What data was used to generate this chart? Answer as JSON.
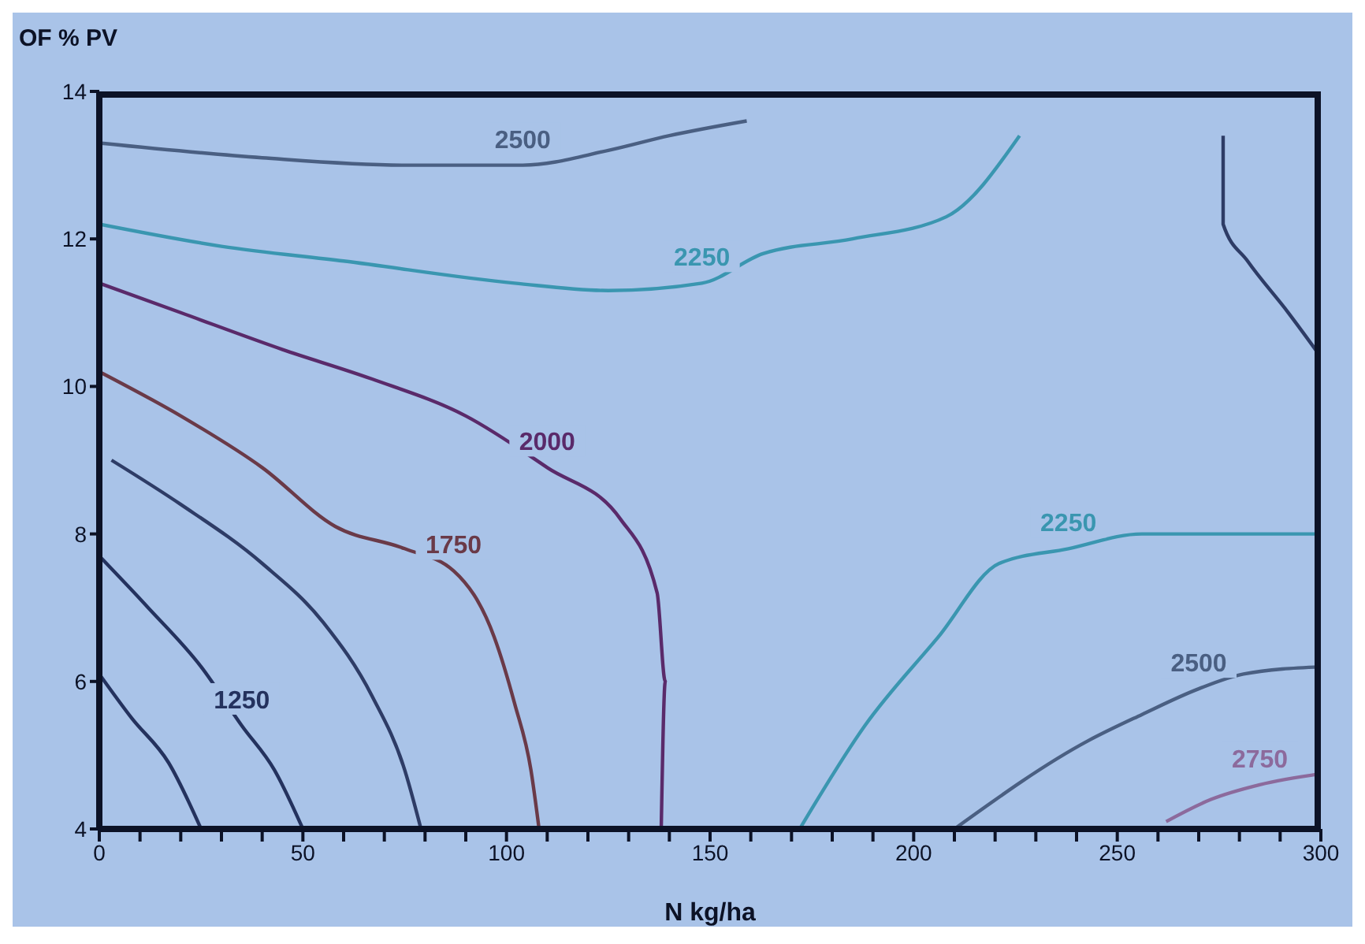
{
  "chart_data": {
    "type": "line",
    "xlabel": "N kg/ha",
    "ylabel": "OF % PV",
    "xlim": [
      0,
      300
    ],
    "ylim": [
      4,
      14
    ],
    "xticks": [
      0,
      {
        "value": 10,
        "label": null
      },
      {
        "value": 20,
        "label": null
      },
      {
        "value": 30,
        "label": null
      },
      {
        "value": 40,
        "label": null
      },
      50,
      {
        "value": 60,
        "label": null
      },
      {
        "value": 70,
        "label": null
      },
      {
        "value": 80,
        "label": null
      },
      {
        "value": 90,
        "label": null
      },
      100,
      {
        "value": 110,
        "label": null
      },
      {
        "value": 120,
        "label": null
      },
      {
        "value": 130,
        "label": null
      },
      {
        "value": 140,
        "label": null
      },
      150,
      {
        "value": 160,
        "label": null
      },
      {
        "value": 170,
        "label": null
      },
      {
        "value": 180,
        "label": null
      },
      {
        "value": 190,
        "label": null
      },
      200,
      {
        "value": 210,
        "label": null
      },
      {
        "value": 220,
        "label": null
      },
      {
        "value": 230,
        "label": null
      },
      {
        "value": 240,
        "label": null
      },
      250,
      {
        "value": 260,
        "label": null
      },
      {
        "value": 270,
        "label": null
      },
      {
        "value": 280,
        "label": null
      },
      {
        "value": 290,
        "label": null
      },
      300
    ],
    "yticks": [
      4,
      6,
      8,
      10,
      12,
      14
    ],
    "marker": "none",
    "line_style": "solid",
    "series": [
      {
        "color": "#24325e",
        "x": [
          0,
          8,
          17,
          25
        ],
        "values": [
          6.1,
          5.5,
          4.9,
          4
        ]
      },
      {
        "name": "1250",
        "color": "#24325e",
        "x": [
          0,
          12,
          25,
          35,
          43,
          50
        ],
        "values": [
          7.7,
          7.0,
          6.2,
          5.4,
          4.8,
          4
        ]
      },
      {
        "color": "#2e3c66",
        "x": [
          3,
          20,
          40,
          55,
          67,
          75,
          79
        ],
        "values": [
          9.0,
          8.4,
          7.6,
          6.8,
          5.8,
          4.8,
          4
        ]
      },
      {
        "name": "1750",
        "color": "#6a3a48",
        "x": [
          0,
          20,
          40,
          58,
          75,
          87,
          97,
          102,
          106,
          108
        ],
        "values": [
          10.2,
          9.6,
          8.9,
          8.1,
          7.8,
          7.5,
          6.6,
          5.7,
          4.8,
          4
        ]
      },
      {
        "name": "2000",
        "color": "#5a2a6a",
        "x": [
          0,
          20,
          45,
          67,
          90,
          110,
          128,
          137,
          139,
          138
        ],
        "values": [
          11.4,
          11.0,
          10.5,
          10.1,
          9.6,
          8.9,
          8.2,
          7.2,
          6,
          4
        ]
      },
      {
        "name": "2250",
        "color": "#3a96b0",
        "x": [
          0,
          30,
          60,
          102,
          125,
          148,
          163,
          185,
          208,
          226
        ],
        "values": [
          12.2,
          11.9,
          11.7,
          11.4,
          11.3,
          11.4,
          11.8,
          12.0,
          12.3,
          13.4
        ]
      },
      {
        "name": "2500",
        "color": "#4a5f82",
        "x": [
          0,
          40,
          75,
          104,
          125,
          140,
          159
        ],
        "values": [
          13.3,
          13.1,
          13.0,
          13.0,
          13.2,
          13.4,
          13.6
        ]
      },
      {
        "name": "2250",
        "color": "#3a96b0",
        "x": [
          172,
          188,
          206,
          221,
          238,
          256,
          280,
          300
        ],
        "values": [
          4,
          5.4,
          6.6,
          7.6,
          7.8,
          8.0,
          8.0,
          8.0
        ]
      },
      {
        "name": "2500",
        "color": "#4a5f82",
        "x": [
          210,
          243,
          256,
          270,
          281,
          300
        ],
        "values": [
          4,
          5.2,
          5.55,
          5.9,
          6.1,
          6.2
        ]
      },
      {
        "name": "2750",
        "color": "#8c6a9c",
        "x": [
          262,
          273,
          285,
          300
        ],
        "values": [
          4.1,
          4.4,
          4.6,
          4.75
        ]
      },
      {
        "color": "#2e3c66",
        "x": [
          276,
          276,
          282,
          292,
          300
        ],
        "values": [
          13.4,
          12.2,
          11.7,
          11.0,
          10.4
        ]
      }
    ]
  }
}
